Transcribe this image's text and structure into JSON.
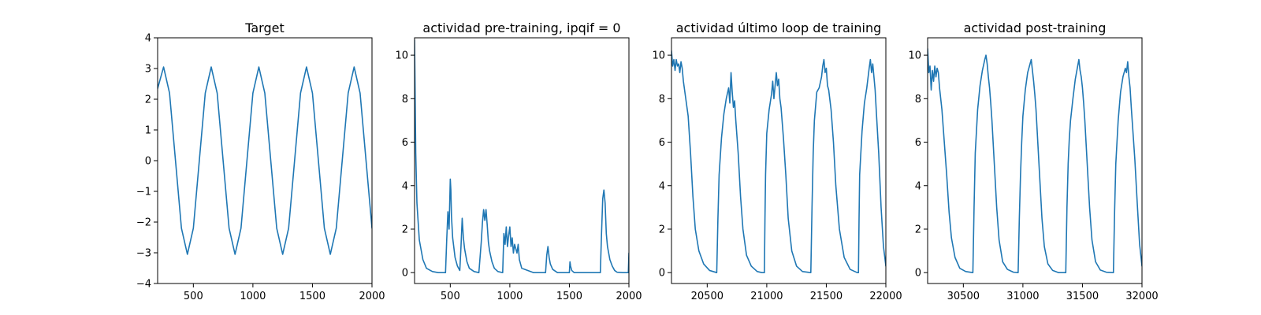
{
  "line_color": "#1f77b4",
  "chart_data": [
    {
      "type": "line",
      "title": "Target",
      "xlim": [
        200,
        2000
      ],
      "ylim": [
        -4,
        4
      ],
      "xticks": [
        500,
        1000,
        1500,
        2000
      ],
      "yticks": [
        -4,
        -3,
        -2,
        -1,
        0,
        1,
        2,
        3,
        4
      ],
      "series": [
        {
          "x": [
            200,
            250,
            300,
            350,
            400,
            450,
            500,
            550,
            600,
            650,
            700,
            750,
            800,
            850,
            900,
            950,
            1000,
            1050,
            1100,
            1150,
            1200,
            1250,
            1300,
            1350,
            1400,
            1450,
            1500,
            1550,
            1600,
            1650,
            1700,
            1750,
            1800,
            1850,
            1900,
            1950,
            2000
          ],
          "y": [
            2.35,
            3.05,
            2.2,
            0.0,
            -2.2,
            -3.05,
            -2.2,
            0.0,
            2.2,
            3.05,
            2.2,
            0.0,
            -2.2,
            -3.05,
            -2.2,
            0.0,
            2.2,
            3.05,
            2.2,
            0.0,
            -2.2,
            -3.05,
            -2.2,
            0.0,
            2.2,
            3.05,
            2.2,
            0.0,
            -2.2,
            -3.05,
            -2.2,
            0.0,
            2.2,
            3.05,
            2.2,
            0.0,
            -2.2
          ]
        }
      ]
    },
    {
      "type": "line",
      "title": "actividad pre-training, ipqif = 0",
      "xlim": [
        200,
        2000
      ],
      "ylim": [
        -0.5,
        10.8
      ],
      "xticks": [
        500,
        1000,
        1500,
        2000
      ],
      "yticks": [
        0,
        2,
        4,
        6,
        8,
        10
      ],
      "series": [
        {
          "x": [
            200,
            210,
            220,
            240,
            270,
            300,
            350,
            400,
            460,
            470,
            480,
            490,
            500,
            505,
            510,
            520,
            540,
            560,
            580,
            590,
            600,
            610,
            620,
            640,
            660,
            700,
            740,
            760,
            770,
            780,
            790,
            800,
            810,
            820,
            830,
            850,
            870,
            900,
            940,
            950,
            960,
            970,
            980,
            990,
            1000,
            1010,
            1020,
            1030,
            1040,
            1050,
            1060,
            1070,
            1080,
            1090,
            1100,
            1200,
            1300,
            1310,
            1320,
            1330,
            1340,
            1360,
            1400,
            1500,
            1505,
            1510,
            1520,
            1540,
            1600,
            1760,
            1770,
            1780,
            1790,
            1800,
            1810,
            1815,
            1820,
            1840,
            1860,
            1880,
            1900,
            1950,
            1995,
            2000
          ],
          "y": [
            10.7,
            5.5,
            3.2,
            1.5,
            0.6,
            0.2,
            0.05,
            0.0,
            0.0,
            1.5,
            2.8,
            2.0,
            4.3,
            3.8,
            2.6,
            1.6,
            0.7,
            0.3,
            0.1,
            1.2,
            2.5,
            1.6,
            1.1,
            0.5,
            0.2,
            0.05,
            0.0,
            1.4,
            2.3,
            2.9,
            2.4,
            2.9,
            2.2,
            1.4,
            1.0,
            0.5,
            0.2,
            0.05,
            0.0,
            1.8,
            1.3,
            2.1,
            1.2,
            1.7,
            2.1,
            1.2,
            1.6,
            0.9,
            1.3,
            1.1,
            0.9,
            1.3,
            0.6,
            0.4,
            0.2,
            0.0,
            0.0,
            0.8,
            1.2,
            0.7,
            0.4,
            0.15,
            0.0,
            0.0,
            0.5,
            0.3,
            0.1,
            0.0,
            0.0,
            0.0,
            1.8,
            3.4,
            3.8,
            3.2,
            1.8,
            1.5,
            1.2,
            0.6,
            0.3,
            0.1,
            0.02,
            0.0,
            0.0,
            0.9
          ]
        }
      ]
    },
    {
      "type": "line",
      "title": "actividad último loop de training",
      "xlim": [
        20200,
        22000
      ],
      "ylim": [
        -0.5,
        10.8
      ],
      "xticks": [
        20500,
        21000,
        21500,
        22000
      ],
      "yticks": [
        0,
        2,
        4,
        6,
        8,
        10
      ],
      "series": [
        {
          "x": [
            20200,
            20210,
            20220,
            20230,
            20240,
            20250,
            20260,
            20270,
            20280,
            20290,
            20300,
            20320,
            20340,
            20360,
            20380,
            20400,
            20430,
            20470,
            20520,
            20580,
            20590,
            20600,
            20620,
            20640,
            20660,
            20680,
            20690,
            20700,
            20710,
            20720,
            20730,
            20740,
            20760,
            20780,
            20800,
            20830,
            20870,
            20920,
            20960,
            20980,
            20985,
            20990,
            21000,
            21020,
            21040,
            21050,
            21060,
            21070,
            21080,
            21090,
            21100,
            21110,
            21120,
            21140,
            21160,
            21180,
            21210,
            21250,
            21300,
            21370,
            21380,
            21390,
            21400,
            21420,
            21440,
            21460,
            21470,
            21480,
            21490,
            21500,
            21510,
            21520,
            21540,
            21560,
            21580,
            21610,
            21650,
            21700,
            21760,
            21770,
            21775,
            21780,
            21800,
            21820,
            21840,
            21860,
            21870,
            21880,
            21890,
            21900,
            21910,
            21920,
            21940,
            21960,
            21980,
            22000
          ],
          "y": [
            10.2,
            9.5,
            9.8,
            9.3,
            9.8,
            9.5,
            9.6,
            9.2,
            9.7,
            9.4,
            8.8,
            8.0,
            7.2,
            5.5,
            3.5,
            2.0,
            1.0,
            0.4,
            0.1,
            0.0,
            2.5,
            4.5,
            6.2,
            7.3,
            8.0,
            8.5,
            7.8,
            9.2,
            8.3,
            7.6,
            7.9,
            7.0,
            5.5,
            3.5,
            2.0,
            0.8,
            0.3,
            0.05,
            0.0,
            0.0,
            2.5,
            4.5,
            6.4,
            7.5,
            8.2,
            8.8,
            8.0,
            8.6,
            9.2,
            8.6,
            8.9,
            8.0,
            7.6,
            6.2,
            4.5,
            2.5,
            1.0,
            0.3,
            0.05,
            0.0,
            3.0,
            5.5,
            7.0,
            8.3,
            8.5,
            9.0,
            9.5,
            9.8,
            9.2,
            9.4,
            8.6,
            8.4,
            7.5,
            6.0,
            4.0,
            2.0,
            0.7,
            0.15,
            0.0,
            0.0,
            2.5,
            4.5,
            6.5,
            7.8,
            8.5,
            9.4,
            9.8,
            9.2,
            9.6,
            9.0,
            8.4,
            7.4,
            5.5,
            3.0,
            1.2,
            0.3
          ]
        }
      ]
    },
    {
      "type": "line",
      "title": "actividad post-training",
      "xlim": [
        30200,
        32000
      ],
      "ylim": [
        -0.5,
        10.8
      ],
      "xticks": [
        30500,
        31000,
        31500,
        32000
      ],
      "yticks": [
        0,
        2,
        4,
        6,
        8,
        10
      ],
      "series": [
        {
          "x": [
            30200,
            30210,
            30220,
            30230,
            30240,
            30250,
            30260,
            30270,
            30280,
            30290,
            30300,
            30320,
            30340,
            30360,
            30380,
            30400,
            30430,
            30470,
            30520,
            30580,
            30590,
            30600,
            30620,
            30640,
            30660,
            30680,
            30690,
            30700,
            30710,
            30720,
            30730,
            30740,
            30760,
            30780,
            30800,
            30830,
            30870,
            30920,
            30960,
            30970,
            30980,
            30990,
            31000,
            31020,
            31040,
            31060,
            31070,
            31080,
            31090,
            31100,
            31110,
            31120,
            31140,
            31160,
            31180,
            31210,
            31250,
            31300,
            31360,
            31370,
            31380,
            31390,
            31400,
            31420,
            31440,
            31460,
            31470,
            31480,
            31490,
            31500,
            31510,
            31520,
            31540,
            31560,
            31580,
            31610,
            31650,
            31700,
            31760,
            31770,
            31780,
            31800,
            31820,
            31840,
            31860,
            31870,
            31880,
            31890,
            31900,
            31910,
            31920,
            31940,
            31960,
            31980,
            32000
          ],
          "y": [
            10.3,
            9.2,
            9.5,
            8.4,
            9.3,
            8.8,
            9.5,
            9.0,
            9.4,
            9.2,
            8.5,
            7.5,
            6.0,
            4.5,
            2.8,
            1.6,
            0.7,
            0.2,
            0.05,
            0.0,
            3.0,
            5.5,
            7.5,
            8.6,
            9.3,
            9.8,
            10.0,
            9.6,
            9.0,
            8.5,
            7.8,
            7.0,
            5.0,
            3.0,
            1.5,
            0.5,
            0.15,
            0.02,
            0.0,
            2.5,
            4.5,
            6.0,
            7.2,
            8.4,
            9.2,
            9.6,
            9.8,
            9.3,
            8.8,
            8.2,
            7.5,
            6.5,
            4.5,
            2.5,
            1.2,
            0.4,
            0.1,
            0.0,
            0.0,
            3.0,
            5.0,
            6.2,
            7.0,
            8.0,
            8.9,
            9.5,
            9.8,
            9.3,
            9.0,
            8.5,
            7.8,
            7.0,
            5.0,
            3.0,
            1.5,
            0.5,
            0.12,
            0.02,
            0.0,
            2.8,
            5.0,
            7.0,
            8.3,
            9.0,
            9.4,
            9.2,
            9.7,
            9.0,
            8.5,
            7.6,
            6.8,
            5.2,
            3.2,
            1.3,
            0.3
          ]
        }
      ]
    }
  ]
}
